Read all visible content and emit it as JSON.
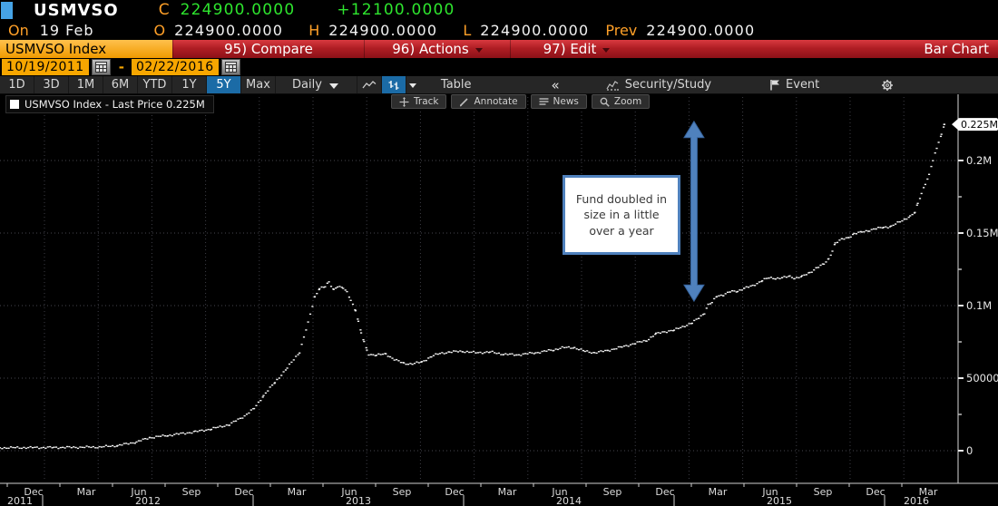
{
  "quote": {
    "ticker": "USMVSO",
    "close_label": "C",
    "close": "224900.0000",
    "change": "+12100.0000",
    "session_label": "On",
    "session_date": "19 Feb",
    "open_label": "O",
    "open": "224900.0000",
    "high_label": "H",
    "high": "224900.0000",
    "low_label": "L",
    "low": "224900.0000",
    "prev_label": "Prev",
    "prev": "224900.0000"
  },
  "menubar": {
    "security_tab": "USMVSO Index",
    "items": [
      {
        "label": "95) Compare",
        "caret": false
      },
      {
        "label": "96) Actions",
        "caret": true
      },
      {
        "label": "97) Edit",
        "caret": true
      }
    ],
    "right_label": "Bar Chart"
  },
  "daterange": {
    "start": "10/19/2011",
    "separator": "-",
    "end": "02/22/2016"
  },
  "toolbar": {
    "periods": [
      "1D",
      "3D",
      "1M",
      "6M",
      "YTD",
      "1Y",
      "5Y",
      "Max"
    ],
    "selected_period": "5Y",
    "frequency": "Daily",
    "table_label": "Table",
    "collapse_label": "«",
    "security_study_label": "Security/Study",
    "event_label": "Event"
  },
  "chart_toolbar": {
    "buttons": [
      {
        "icon": "track-move-icon",
        "label": "Track"
      },
      {
        "icon": "annotate-pencil-icon",
        "label": "Annotate"
      },
      {
        "icon": "news-lines-icon",
        "label": "News"
      },
      {
        "icon": "zoom-magnifier-icon",
        "label": "Zoom"
      }
    ]
  },
  "legend": {
    "swatch_color": "#ffffff",
    "text": "USMVSO Index - Last Price 0.225M"
  },
  "colors": {
    "up_green": "#2ee52e",
    "amber": "#ffa028",
    "menubar_red": "#b01e24",
    "selected_blue": "#1b6ba6",
    "annotation_blue": "#4f81bd",
    "series_white": "#f2f2f2"
  },
  "chart_data": {
    "type": "scatter",
    "series_name": "USMVSO Index - Last Price",
    "point_color": "#f2f2f2",
    "background": "#000000",
    "grid": "dotted",
    "ylim": [
      0,
      235000
    ],
    "y_axis": {
      "side": "right",
      "major_ticks": [
        {
          "label": "0.2M",
          "value": 200000
        },
        {
          "label": "0.15M",
          "value": 150000
        },
        {
          "label": "0.1M",
          "value": 100000
        },
        {
          "label": "50000",
          "value": 50000
        },
        {
          "label": "0",
          "value": 0
        }
      ],
      "minor_tick_values": [
        175000,
        125000,
        75000,
        25000
      ],
      "last_price_marker": {
        "label": "0.225M",
        "value": 224900
      }
    },
    "x_axis": {
      "start": "10/19/2011",
      "end": "02/22/2016",
      "month_labels": [
        "Dec",
        "Mar",
        "Jun",
        "Sep",
        "Dec",
        "Mar",
        "Jun",
        "Sep",
        "Dec",
        "Mar",
        "Jun",
        "Sep",
        "Dec",
        "Mar",
        "Jun",
        "Sep",
        "Dec",
        "Mar"
      ],
      "year_labels": [
        "2011",
        "2012",
        "2013",
        "2014",
        "2015",
        "2016"
      ]
    },
    "points": [
      [
        0.0,
        2000
      ],
      [
        0.057,
        2200
      ],
      [
        0.105,
        2500
      ],
      [
        0.124,
        3500
      ],
      [
        0.144,
        6000
      ],
      [
        0.158,
        9000
      ],
      [
        0.177,
        10500
      ],
      [
        0.206,
        13000
      ],
      [
        0.223,
        15000
      ],
      [
        0.242,
        18000
      ],
      [
        0.258,
        24000
      ],
      [
        0.268,
        29000
      ],
      [
        0.278,
        38000
      ],
      [
        0.29,
        47000
      ],
      [
        0.303,
        57000
      ],
      [
        0.316,
        68000
      ],
      [
        0.325,
        88000
      ],
      [
        0.332,
        106000
      ],
      [
        0.337,
        112000
      ],
      [
        0.343,
        113000
      ],
      [
        0.347,
        116000
      ],
      [
        0.352,
        111000
      ],
      [
        0.356,
        113500
      ],
      [
        0.362,
        112000
      ],
      [
        0.366,
        109000
      ],
      [
        0.37,
        104000
      ],
      [
        0.375,
        97000
      ],
      [
        0.378,
        89000
      ],
      [
        0.381,
        81000
      ],
      [
        0.384,
        75000
      ],
      [
        0.387,
        69000
      ],
      [
        0.389,
        66500
      ],
      [
        0.397,
        66000
      ],
      [
        0.407,
        66500
      ],
      [
        0.416,
        63000
      ],
      [
        0.426,
        60000
      ],
      [
        0.435,
        60000
      ],
      [
        0.445,
        61000
      ],
      [
        0.455,
        65000
      ],
      [
        0.464,
        67000
      ],
      [
        0.474,
        68000
      ],
      [
        0.488,
        68500
      ],
      [
        0.502,
        67500
      ],
      [
        0.517,
        68000
      ],
      [
        0.531,
        66500
      ],
      [
        0.545,
        66000
      ],
      [
        0.565,
        67500
      ],
      [
        0.584,
        69500
      ],
      [
        0.593,
        71000
      ],
      [
        0.606,
        71000
      ],
      [
        0.617,
        68500
      ],
      [
        0.627,
        67500
      ],
      [
        0.641,
        69000
      ],
      [
        0.656,
        71500
      ],
      [
        0.67,
        74000
      ],
      [
        0.682,
        76000
      ],
      [
        0.692,
        80500
      ],
      [
        0.701,
        82000
      ],
      [
        0.711,
        83000
      ],
      [
        0.72,
        85500
      ],
      [
        0.73,
        88000
      ],
      [
        0.737,
        91500
      ],
      [
        0.743,
        95000
      ],
      [
        0.747,
        100500
      ],
      [
        0.751,
        102000
      ],
      [
        0.756,
        106500
      ],
      [
        0.763,
        107500
      ],
      [
        0.77,
        109500
      ],
      [
        0.778,
        110000
      ],
      [
        0.785,
        112000
      ],
      [
        0.794,
        113500
      ],
      [
        0.804,
        117500
      ],
      [
        0.811,
        119000
      ],
      [
        0.818,
        118800
      ],
      [
        0.825,
        119200
      ],
      [
        0.833,
        120000
      ],
      [
        0.838,
        119000
      ],
      [
        0.846,
        120000
      ],
      [
        0.854,
        122500
      ],
      [
        0.861,
        126000
      ],
      [
        0.869,
        128500
      ],
      [
        0.874,
        132000
      ],
      [
        0.878,
        138000
      ],
      [
        0.881,
        143000
      ],
      [
        0.888,
        145600
      ],
      [
        0.895,
        147000
      ],
      [
        0.901,
        149500
      ],
      [
        0.909,
        150600
      ],
      [
        0.917,
        152000
      ],
      [
        0.924,
        153000
      ],
      [
        0.932,
        154000
      ],
      [
        0.94,
        154500
      ],
      [
        0.947,
        157000
      ],
      [
        0.954,
        159500
      ],
      [
        0.96,
        161500
      ],
      [
        0.965,
        164000
      ],
      [
        0.968,
        170000
      ],
      [
        0.972,
        177500
      ],
      [
        0.976,
        184000
      ],
      [
        0.98,
        190000
      ],
      [
        0.984,
        200000
      ],
      [
        0.988,
        208000
      ],
      [
        0.99,
        213000
      ],
      [
        0.993,
        218000
      ],
      [
        0.996,
        224900
      ]
    ],
    "annotations": {
      "textbox": {
        "text": "Fund doubled in size in a little over a year",
        "fill": "#ffffff",
        "border": "#4f81bd",
        "text_color": "#3a3a3a"
      },
      "arrow": {
        "color": "#4f81bd",
        "x_frac": 0.732,
        "top_value": 227000,
        "bottom_value": 103000
      }
    }
  }
}
